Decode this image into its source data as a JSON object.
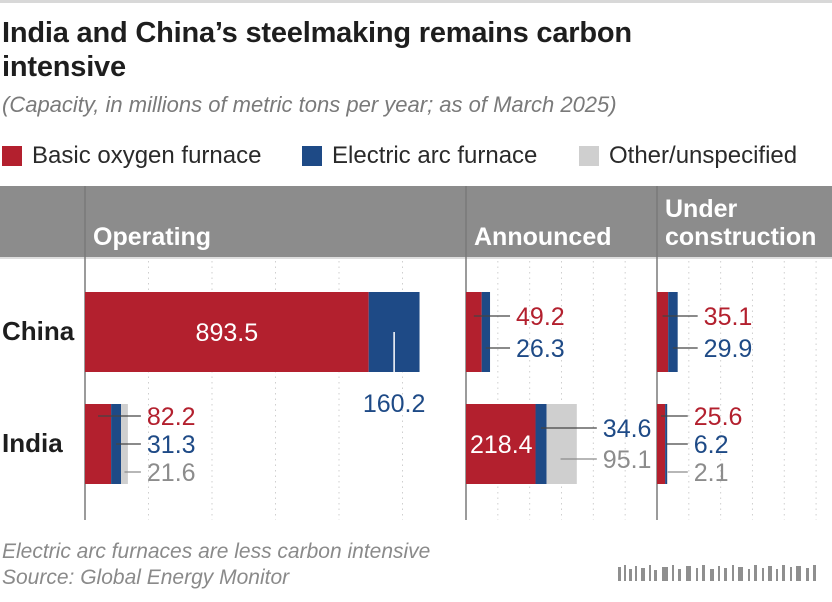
{
  "title": "India and China’s steelmaking remains carbon intensive",
  "subtitle": "(Capacity, in millions of metric tons per year; as of March 2025)",
  "legend": [
    {
      "label": "Basic oxygen furnace",
      "color": "#b3202e"
    },
    {
      "label": "Electric arc furnace",
      "color": "#1e4a86"
    },
    {
      "label": "Other/unspecified",
      "color": "#cfcfcf"
    }
  ],
  "footnote": "Electric arc furnaces are less carbon intensive",
  "source": "Source: Global Energy Monitor",
  "chart_data": {
    "type": "bar",
    "orientation": "horizontal",
    "stacked": true,
    "panels": [
      "Operating",
      "Announced",
      "Under construction"
    ],
    "categories": [
      "China",
      "India"
    ],
    "series": [
      {
        "name": "Basic oxygen furnace",
        "color": "#b3202e",
        "label_color": "#b3202e",
        "values": {
          "Operating": [
            893.5,
            82.2
          ],
          "Announced": [
            49.2,
            218.4
          ],
          "Under construction": [
            35.1,
            25.6
          ]
        }
      },
      {
        "name": "Electric arc furnace",
        "color": "#1e4a86",
        "label_color": "#1e4a86",
        "values": {
          "Operating": [
            160.2,
            31.3
          ],
          "Announced": [
            26.3,
            34.6
          ],
          "Under construction": [
            29.9,
            6.2
          ]
        }
      },
      {
        "name": "Other/unspecified",
        "color": "#cfcfcf",
        "label_color": "#8c8c8c",
        "values": {
          "Operating": [
            0,
            21.6
          ],
          "Announced": [
            0,
            95.1
          ],
          "Under construction": [
            0,
            2.1
          ]
        }
      }
    ],
    "xlim": [
      0,
      1100
    ],
    "grid": true,
    "legend_position": "top"
  }
}
